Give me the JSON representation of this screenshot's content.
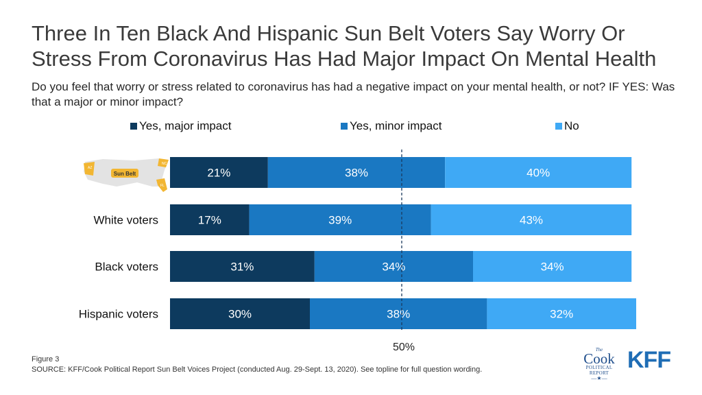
{
  "title": "Three In Ten Black And Hispanic Sun Belt Voters Say Worry Or Stress From Coronavirus Has Had Major Impact On Mental Health",
  "subtitle": "Do you feel that worry or stress related to coronavirus has had a negative impact on your mental health, or not? IF YES: Was that a major or minor impact?",
  "colors": {
    "major": "#0d3a5e",
    "minor": "#1a78c2",
    "no": "#3fa9f5"
  },
  "map_icon": {
    "name": "sun-belt-map-icon",
    "label": "Sun Belt",
    "state_labels": [
      "AZ",
      "NC",
      "FL"
    ]
  },
  "chart_data": {
    "type": "bar",
    "orientation": "horizontal",
    "stacked": true,
    "categories": [
      "Sun Belt",
      "White voters",
      "Black voters",
      "Hispanic voters"
    ],
    "series": [
      {
        "name": "Yes, major impact",
        "values": [
          21,
          17,
          31,
          30
        ]
      },
      {
        "name": "Yes, minor impact",
        "values": [
          38,
          39,
          34,
          38
        ]
      },
      {
        "name": "No",
        "values": [
          40,
          43,
          34,
          32
        ]
      }
    ],
    "data_labels": [
      [
        "21%",
        "38%",
        "40%"
      ],
      [
        "17%",
        "39%",
        "43%"
      ],
      [
        "31%",
        "34%",
        "34%"
      ],
      [
        "30%",
        "38%",
        "32%"
      ]
    ],
    "reference_line": {
      "value": 50,
      "label": "50%"
    },
    "xlim": [
      0,
      100
    ],
    "legend_position": "top"
  },
  "footer": {
    "figure": "Figure 3",
    "source": "SOURCE: KFF/Cook Political Report Sun Belt Voices Project (conducted Aug. 29-Sept. 13, 2020). See topline for full question wording."
  },
  "logos": {
    "cook": {
      "the": "The",
      "name": "Cook",
      "sub1": "POLITICAL",
      "sub2": "REPORT",
      "star": "—★—"
    },
    "kff": "KFF"
  }
}
